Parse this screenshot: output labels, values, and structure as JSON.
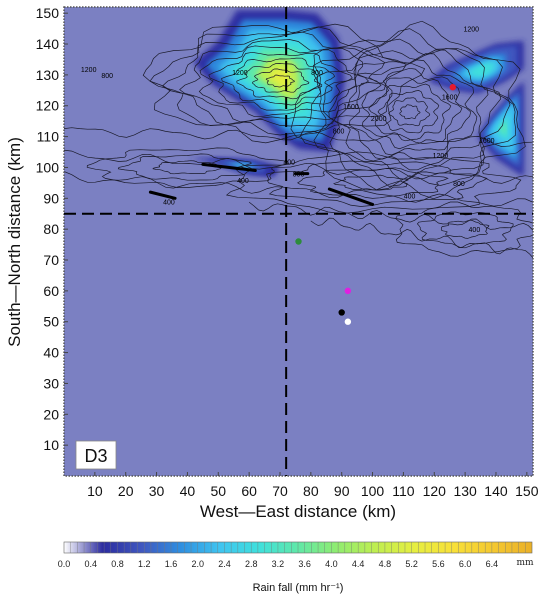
{
  "chart_data": {
    "type": "heatmap",
    "title": "",
    "panel_label": "D3",
    "xlabel": "West—East distance (km)",
    "ylabel": "South—North distance (km)",
    "xlim": [
      0,
      152
    ],
    "ylim": [
      0,
      152
    ],
    "x_ticks": [
      10,
      20,
      30,
      40,
      50,
      60,
      70,
      80,
      90,
      100,
      110,
      120,
      130,
      140,
      150
    ],
    "y_ticks": [
      10,
      20,
      30,
      40,
      50,
      60,
      70,
      80,
      90,
      100,
      110,
      120,
      130,
      140,
      150
    ],
    "reference_lines": {
      "vertical_x": 72,
      "horizontal_y": 85
    },
    "contour_labels": [
      {
        "text": "1200",
        "x": 8,
        "y": 131
      },
      {
        "text": "800",
        "x": 14,
        "y": 129
      },
      {
        "text": "1200",
        "x": 57,
        "y": 130
      },
      {
        "text": "800",
        "x": 82,
        "y": 130
      },
      {
        "text": "1600",
        "x": 93,
        "y": 119
      },
      {
        "text": "800",
        "x": 89,
        "y": 111
      },
      {
        "text": "400",
        "x": 73,
        "y": 101
      },
      {
        "text": "800",
        "x": 76,
        "y": 97
      },
      {
        "text": "400",
        "x": 58,
        "y": 95
      },
      {
        "text": "400",
        "x": 34,
        "y": 88
      },
      {
        "text": "2000",
        "x": 102,
        "y": 115
      },
      {
        "text": "400",
        "x": 112,
        "y": 90
      },
      {
        "text": "1200",
        "x": 122,
        "y": 103
      },
      {
        "text": "1600",
        "x": 125,
        "y": 122
      },
      {
        "text": "800",
        "x": 128,
        "y": 94
      },
      {
        "text": "1200",
        "x": 132,
        "y": 144
      },
      {
        "text": "1600",
        "x": 137,
        "y": 108
      },
      {
        "text": "400",
        "x": 133,
        "y": 79
      }
    ],
    "markers": [
      {
        "name": "red-site",
        "x": 126,
        "y": 126,
        "color": "#e8192c"
      },
      {
        "name": "green-site",
        "x": 76,
        "y": 76,
        "color": "#2d8c3c"
      },
      {
        "name": "magenta-site",
        "x": 92,
        "y": 60,
        "color": "#e020e0"
      },
      {
        "name": "black-site",
        "x": 90,
        "y": 53,
        "color": "#000000"
      },
      {
        "name": "white-site",
        "x": 92,
        "y": 50,
        "color": "#ffffff"
      }
    ],
    "rain_regions": [
      {
        "peak": 5.2,
        "points": [
          [
            56,
            151
          ],
          [
            72,
            151
          ],
          [
            82,
            150
          ],
          [
            89,
            142
          ],
          [
            91,
            128
          ],
          [
            89,
            114
          ],
          [
            86,
            105
          ],
          [
            76,
            106
          ],
          [
            70,
            110
          ],
          [
            62,
            118
          ],
          [
            48,
            127
          ],
          [
            42,
            134
          ],
          [
            50,
            141
          ]
        ]
      },
      {
        "peak": 2.4,
        "points": [
          [
            40,
            103
          ],
          [
            48,
            102
          ],
          [
            60,
            98
          ],
          [
            68,
            97
          ],
          [
            70,
            100
          ],
          [
            62,
            102
          ],
          [
            50,
            103
          ]
        ]
      },
      {
        "peak": 3.2,
        "points": [
          [
            124,
            133
          ],
          [
            140,
            140
          ],
          [
            149,
            141
          ],
          [
            149,
            132
          ],
          [
            143,
            128
          ],
          [
            134,
            124
          ],
          [
            127,
            125
          ],
          [
            118,
            128
          ]
        ]
      },
      {
        "peak": 3.6,
        "points": [
          [
            149,
            128
          ],
          [
            144,
            123
          ],
          [
            138,
            116
          ],
          [
            134,
            110
          ],
          [
            140,
            103
          ],
          [
            149,
            97
          ]
        ]
      }
    ],
    "colorbar": {
      "title": "Rain fall (mm hr⁻¹)",
      "unit": "mm",
      "min": 0.0,
      "max": 7.0,
      "tick_labels": [
        "0.0",
        "0.4",
        "0.8",
        "1.2",
        "1.6",
        "2.0",
        "2.4",
        "2.8",
        "3.2",
        "3.6",
        "4.0",
        "4.4",
        "4.8",
        "5.2",
        "5.6",
        "6.0",
        "6.4"
      ],
      "colors": [
        "#ffffff",
        "#2c2ca0",
        "#4058c0",
        "#2f8fe0",
        "#3fc4f0",
        "#3fe0dc",
        "#60e8a8",
        "#90ec70",
        "#c0ee50",
        "#e6ee40",
        "#f8e038",
        "#f4c830",
        "#eab028"
      ]
    }
  }
}
